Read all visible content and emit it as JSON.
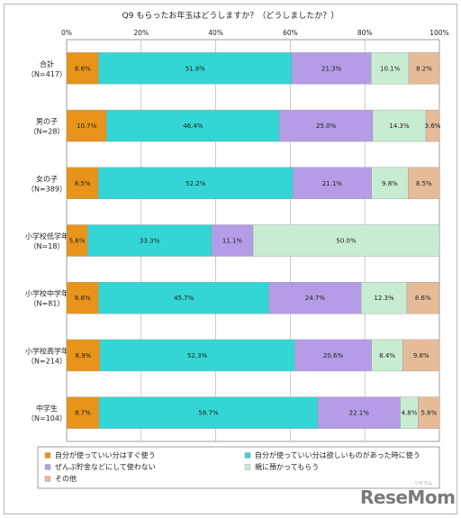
{
  "chart_data": {
    "type": "bar",
    "orientation": "horizontal",
    "stacked": "percent",
    "title": "Q9 もらったお年玉はどうしますか？（どうしましたか？）",
    "xlim": [
      0,
      100
    ],
    "x_ticks": [
      "0%",
      "20%",
      "40%",
      "60%",
      "80%",
      "100%"
    ],
    "categories": [
      {
        "name": "合計",
        "n": "（N=417）"
      },
      {
        "name": "男の子",
        "n": "（N=28）"
      },
      {
        "name": "女の子",
        "n": "（N=389）"
      },
      {
        "name": "小学校低学年",
        "n": "（N=18）"
      },
      {
        "name": "小学校中学年",
        "n": "（N=81）"
      },
      {
        "name": "小学校高学年",
        "n": "（N=214）"
      },
      {
        "name": "中学生",
        "n": "（N=104）"
      }
    ],
    "series": [
      {
        "name": "自分が使っていい分はすぐ使う",
        "color": "#e8941a",
        "values": [
          8.6,
          10.7,
          8.5,
          5.6,
          8.6,
          8.9,
          8.7
        ],
        "labels": [
          "8.6%",
          "10.7%",
          "8.5%",
          "5.6%",
          "8.6%",
          "8.9%",
          "8.7%"
        ]
      },
      {
        "name": "自分が使っていい分は欲しいものがあった時に使う",
        "color": "#33d6d4",
        "values": [
          51.8,
          46.4,
          52.2,
          33.3,
          45.7,
          52.3,
          58.7
        ],
        "labels": [
          "51.8%",
          "46.4%",
          "52.2%",
          "33.3%",
          "45.7%",
          "52.3%",
          "58.7%"
        ]
      },
      {
        "name": "ぜんぶ貯金などにして使わない",
        "color": "#b49ce6",
        "values": [
          21.3,
          25.0,
          21.1,
          11.1,
          24.7,
          20.6,
          22.1
        ],
        "labels": [
          "21.3%",
          "25.0%",
          "21.1%",
          "11.1%",
          "24.7%",
          "20.6%",
          "22.1%"
        ]
      },
      {
        "name": "親に預かってもらう",
        "color": "#c8ecd2",
        "values": [
          10.1,
          14.3,
          9.8,
          50.0,
          12.3,
          8.4,
          4.8
        ],
        "labels": [
          "10.1%",
          "14.3%",
          "9.8%",
          "50.0%",
          "12.3%",
          "8.4%",
          "4.8%"
        ]
      },
      {
        "name": "その他",
        "color": "#e6bb98",
        "values": [
          8.2,
          3.6,
          8.5,
          0,
          8.6,
          9.8,
          5.8
        ],
        "labels": [
          "8.2%",
          "3.6%",
          "8.5%",
          "",
          "8.6%",
          "9.8%",
          "5.8%"
        ]
      }
    ],
    "legend": "bottom",
    "grid": true
  },
  "logo": {
    "text": "ReseMom",
    "sub": "リセマム"
  }
}
